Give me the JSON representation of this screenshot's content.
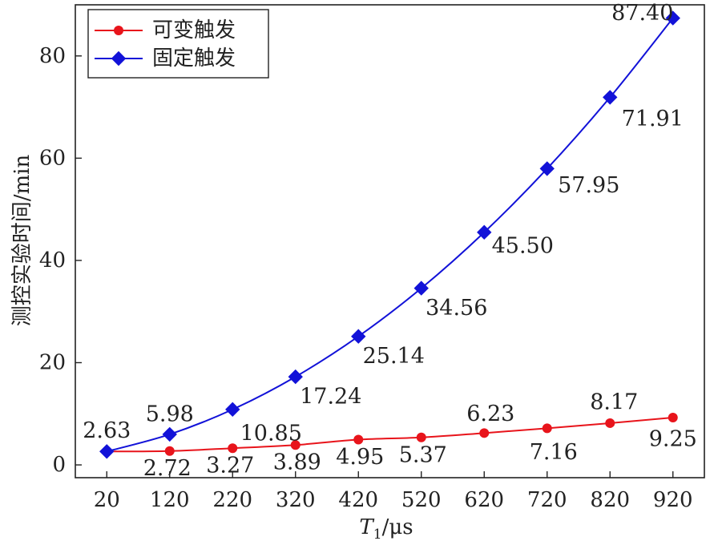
{
  "chart_data": {
    "type": "line",
    "title": "",
    "xlabel_main": "T",
    "xlabel_sub": "1",
    "xlabel_unit": "/μs",
    "ylabel": "测控实验时间/min",
    "x": [
      20,
      120,
      220,
      320,
      420,
      520,
      620,
      720,
      820,
      920
    ],
    "xlim": [
      -30,
      970
    ],
    "ylim": [
      -2.5,
      90
    ],
    "yticks": [
      0,
      20,
      40,
      60,
      80
    ],
    "grid": false,
    "legend_position": "top-left",
    "series": [
      {
        "name": "可变触发",
        "color": "#e8141b",
        "marker": "circle",
        "values": [
          2.63,
          2.72,
          3.27,
          3.89,
          4.95,
          5.37,
          6.23,
          7.16,
          8.17,
          9.25
        ],
        "labels": [
          "2.63",
          "2.72",
          "3.27",
          "3.89",
          "4.95",
          "5.37",
          "6.23",
          "7.16",
          "8.17",
          "9.25"
        ]
      },
      {
        "name": "固定触发",
        "color": "#1212d8",
        "marker": "diamond",
        "values": [
          2.63,
          5.98,
          10.85,
          17.24,
          25.14,
          34.56,
          45.5,
          57.95,
          71.91,
          87.4
        ],
        "labels": [
          "",
          "5.98",
          "10.85",
          "17.24",
          "25.14",
          "34.56",
          "45.50",
          "57.95",
          "71.91",
          "87.40"
        ]
      }
    ]
  }
}
